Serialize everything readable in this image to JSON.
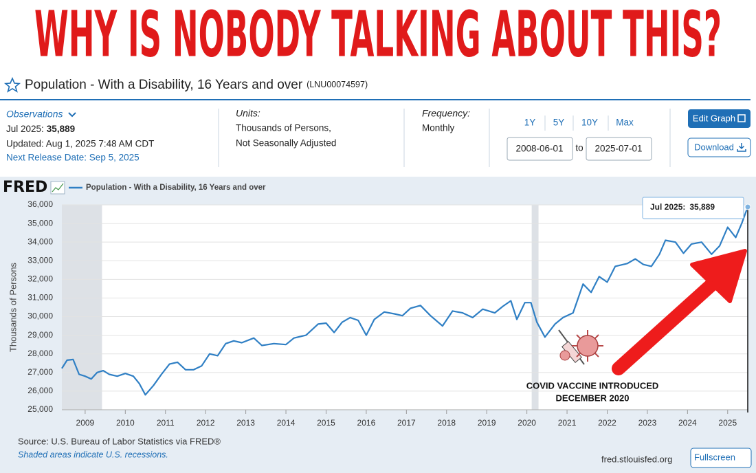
{
  "headline": "WHY IS NOBODY TALKING ABOUT THIS?",
  "header": {
    "title": "Population - With a Disability, 16 Years and over",
    "series_id": "(LNU00074597)"
  },
  "info": {
    "observations_label": "Observations",
    "latest_date": "Jul 2025:",
    "latest_value": "35,889",
    "updated": "Updated: Aug 1, 2025 7:48 AM CDT",
    "next_release": "Next Release Date: Sep 5, 2025",
    "units_label": "Units:",
    "units": [
      "Thousands of Persons,",
      "Not Seasonally Adjusted"
    ],
    "frequency_label": "Frequency:",
    "frequency": "Monthly",
    "ranges": [
      "1Y",
      "5Y",
      "10Y",
      "Max"
    ],
    "start": "2008-06-01",
    "to": "to",
    "end": "2025-07-01",
    "edit": "Edit Graph",
    "download": "Download"
  },
  "brand": "FRED",
  "chart_data": {
    "type": "line",
    "y_label": "Thousands of Persons",
    "x": [
      2008.42,
      2008.55,
      2008.7,
      2008.85,
      2009.0,
      2009.15,
      2009.3,
      2009.45,
      2009.6,
      2009.8,
      2010.0,
      2010.2,
      2010.35,
      2010.5,
      2010.7,
      2010.9,
      2011.1,
      2011.3,
      2011.5,
      2011.7,
      2011.9,
      2012.1,
      2012.3,
      2012.5,
      2012.7,
      2012.9,
      2013.2,
      2013.4,
      2013.7,
      2014.0,
      2014.2,
      2014.5,
      2014.8,
      2015.0,
      2015.2,
      2015.4,
      2015.6,
      2015.8,
      2016.0,
      2016.2,
      2016.45,
      2016.7,
      2016.9,
      2017.1,
      2017.35,
      2017.6,
      2017.9,
      2018.15,
      2018.4,
      2018.65,
      2018.9,
      2019.2,
      2019.4,
      2019.6,
      2019.75,
      2019.95,
      2020.1,
      2020.25,
      2020.45,
      2020.7,
      2020.9,
      2021.15,
      2021.4,
      2021.6,
      2021.8,
      2022.0,
      2022.2,
      2022.5,
      2022.7,
      2022.9,
      2023.1,
      2023.3,
      2023.45,
      2023.7,
      2023.9,
      2024.1,
      2024.35,
      2024.6,
      2024.8,
      2025.0,
      2025.2,
      2025.35,
      2025.5
    ],
    "series": [
      {
        "name": "Population - With a Disability, 16 Years and over",
        "color": "#2f7fc4",
        "values": [
          27220,
          27660,
          27700,
          26900,
          26800,
          26650,
          27000,
          27100,
          26900,
          26800,
          26950,
          26800,
          26400,
          25800,
          26300,
          26900,
          27450,
          27550,
          27150,
          27150,
          27350,
          28000,
          27900,
          28550,
          28700,
          28600,
          28850,
          28450,
          28550,
          28500,
          28850,
          29000,
          29600,
          29650,
          29150,
          29700,
          29950,
          29800,
          29000,
          29850,
          30250,
          30150,
          30050,
          30450,
          30600,
          30050,
          29500,
          30300,
          30200,
          29950,
          30400,
          30200,
          30550,
          30850,
          29850,
          30750,
          30750,
          29700,
          28900,
          29600,
          29950,
          30200,
          31750,
          31300,
          32150,
          31850,
          32700,
          32850,
          33100,
          32800,
          32700,
          33350,
          34100,
          34000,
          33400,
          33900,
          34000,
          33350,
          33800,
          34800,
          34250,
          35000,
          35889
        ]
      }
    ],
    "recessions": [
      [
        2008.42,
        2009.42
      ],
      [
        2020.12,
        2020.29
      ]
    ],
    "xlim": [
      2008.42,
      2025.5
    ],
    "xticks": [
      2009,
      2010,
      2011,
      2012,
      2013,
      2014,
      2015,
      2016,
      2017,
      2018,
      2019,
      2020,
      2021,
      2022,
      2023,
      2024,
      2025
    ],
    "ylim": [
      25000,
      36000
    ],
    "yticks": [
      {
        "value": 25000,
        "label": "25,000"
      },
      {
        "value": 26000,
        "label": "26,000"
      },
      {
        "value": 27000,
        "label": "27,000"
      },
      {
        "value": 28000,
        "label": "28,000"
      },
      {
        "value": 29000,
        "label": "29,000"
      },
      {
        "value": 30000,
        "label": "30,000"
      },
      {
        "value": 31000,
        "label": "31,000"
      },
      {
        "value": 32000,
        "label": "32,000"
      },
      {
        "value": 33000,
        "label": "33,000"
      },
      {
        "value": 34000,
        "label": "34,000"
      },
      {
        "value": 35000,
        "label": "35,000"
      },
      {
        "value": 36000,
        "label": "36,000"
      }
    ],
    "grid": true,
    "tooltip": {
      "date": "Jul 2025:",
      "value": "35,889"
    },
    "annotation": [
      "COVID VACCINE INTRODUCED",
      "DECEMBER 2020"
    ]
  },
  "footer": {
    "source": "Source: U.S. Bureau of Labor Statistics via FRED®",
    "note": "Shaded areas indicate U.S. recessions.",
    "site": "fred.stlouisfed.org",
    "fullscreen": "Fullscreen"
  }
}
